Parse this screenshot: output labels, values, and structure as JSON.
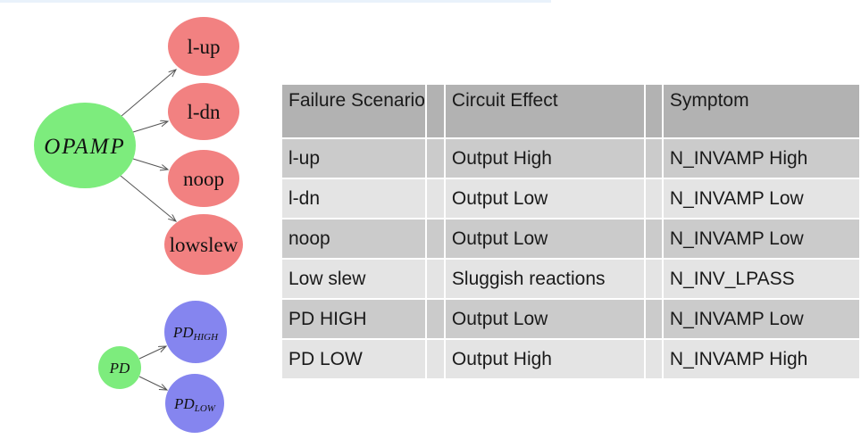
{
  "colors": {
    "node_green": "#7dec7d",
    "node_red": "#f28181",
    "node_blue": "#8585ef",
    "arrow": "#555555",
    "table_header_bg": "#b2b2b2",
    "table_row_dark_bg": "#cbcbcb",
    "table_row_light_bg": "#e4e4e4",
    "top_strip": "#e9f2fb",
    "text": "#1a1a1a"
  },
  "diagram": {
    "opamp_tree": {
      "root_label": "OPAMP",
      "children": [
        "l-up",
        "l-dn",
        "noop",
        "lowslew"
      ]
    },
    "pd_tree": {
      "root_label": "PD",
      "children": [
        {
          "main": "PD",
          "sub": "HIGH"
        },
        {
          "main": "PD",
          "sub": "LOW"
        }
      ]
    }
  },
  "table": {
    "columns": [
      "Failure Scenario",
      "",
      "Circuit Effect",
      "",
      "Symptom"
    ],
    "rows": [
      [
        "l-up",
        "",
        "Output High",
        "",
        "N_INVAMP High"
      ],
      [
        "l-dn",
        "",
        "Output Low",
        "",
        "N_INVAMP Low"
      ],
      [
        "noop",
        "",
        "Output Low",
        "",
        "N_INVAMP Low"
      ],
      [
        "Low slew",
        "",
        "Sluggish reactions",
        "",
        "N_INV_LPASS"
      ],
      [
        "PD HIGH",
        "",
        "Output Low",
        "",
        "N_INVAMP Low"
      ],
      [
        "PD LOW",
        "",
        "Output High",
        "",
        "N_INVAMP High"
      ]
    ]
  }
}
